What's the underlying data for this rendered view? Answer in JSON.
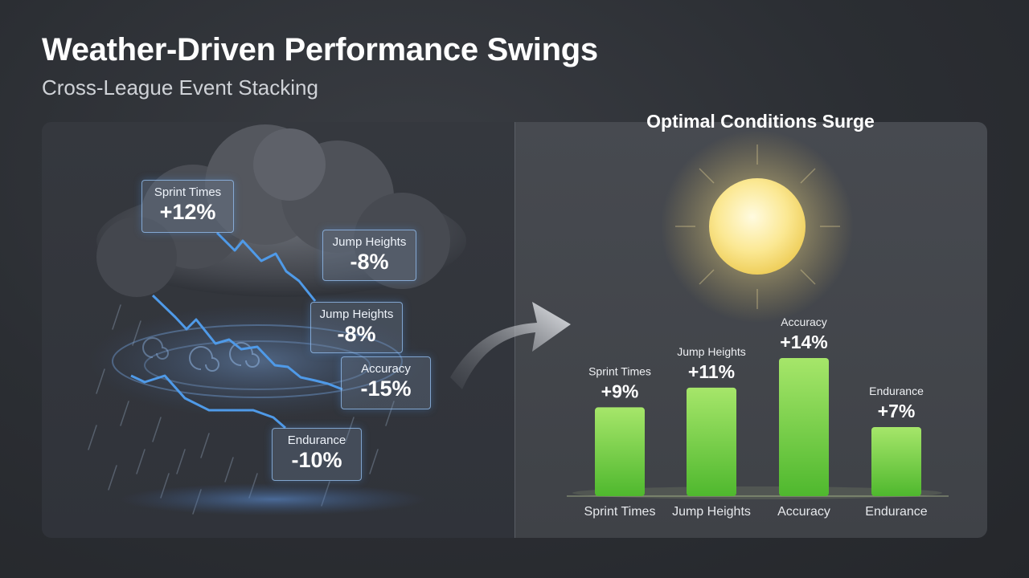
{
  "header": {
    "title": "Weather-Driven Performance Swings",
    "subtitle": "Cross-League Event Stacking"
  },
  "storm_panel": {
    "tiles": [
      {
        "label": "Sprint Times",
        "value": "+12%"
      },
      {
        "label": "Jump Heights",
        "value": "-8%"
      },
      {
        "label": "Jump Heights",
        "value": "-8%"
      },
      {
        "label": "Accuracy",
        "value": "-15%"
      },
      {
        "label": "Endurance",
        "value": "-10%"
      }
    ]
  },
  "colors": {
    "storm_line": "#4f9ae8",
    "bar_top": "#a6e66a",
    "bar_bottom": "#4fb82e",
    "sun": "#fff1a8"
  },
  "chart_data": {
    "type": "bar",
    "title": "Optimal Conditions Surge",
    "categories": [
      "Sprint Times",
      "Jump Heights",
      "Accuracy",
      "Endurance"
    ],
    "values": [
      9,
      11,
      14,
      7
    ],
    "value_labels": [
      "+9%",
      "+11%",
      "+14%",
      "+7%"
    ],
    "unit": "%",
    "grid": false
  }
}
